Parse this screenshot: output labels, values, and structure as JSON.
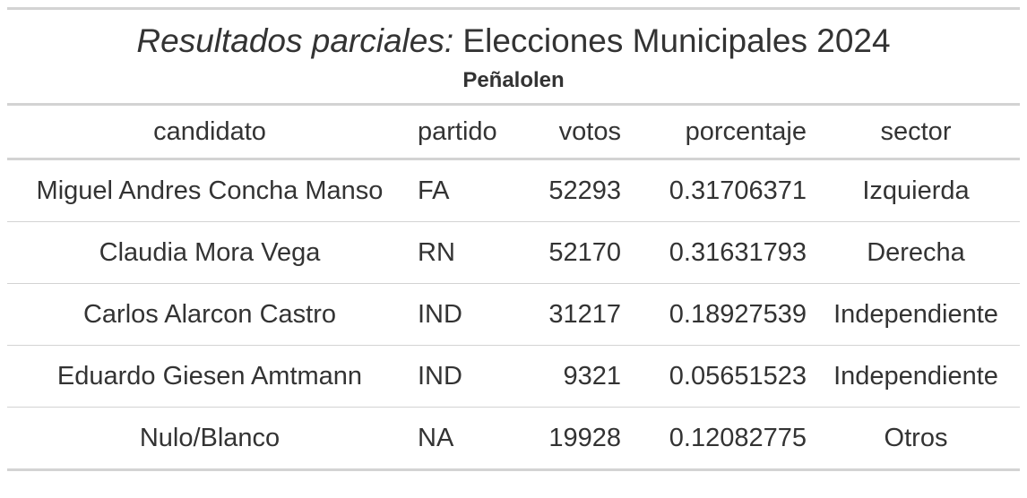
{
  "table": {
    "title_italic": "Resultados parciales:",
    "title_rest": " Elecciones Municipales 2024",
    "subtitle": "Peñalolen",
    "columns": [
      "candidato",
      "partido",
      "votos",
      "porcentaje",
      "sector"
    ],
    "rows": [
      {
        "candidato": "Miguel Andres Concha Manso",
        "partido": "FA",
        "votos": "52293",
        "porcentaje": "0.31706371",
        "sector": "Izquierda"
      },
      {
        "candidato": "Claudia Mora Vega",
        "partido": "RN",
        "votos": "52170",
        "porcentaje": "0.31631793",
        "sector": "Derecha"
      },
      {
        "candidato": "Carlos Alarcon Castro",
        "partido": "IND",
        "votos": "31217",
        "porcentaje": "0.18927539",
        "sector": "Independiente"
      },
      {
        "candidato": "Eduardo Giesen Amtmann",
        "partido": "IND",
        "votos": "9321",
        "porcentaje": "0.05651523",
        "sector": "Independiente"
      },
      {
        "candidato": "Nulo/Blanco",
        "partido": "NA",
        "votos": "19928",
        "porcentaje": "0.12082775",
        "sector": "Otros"
      }
    ]
  }
}
